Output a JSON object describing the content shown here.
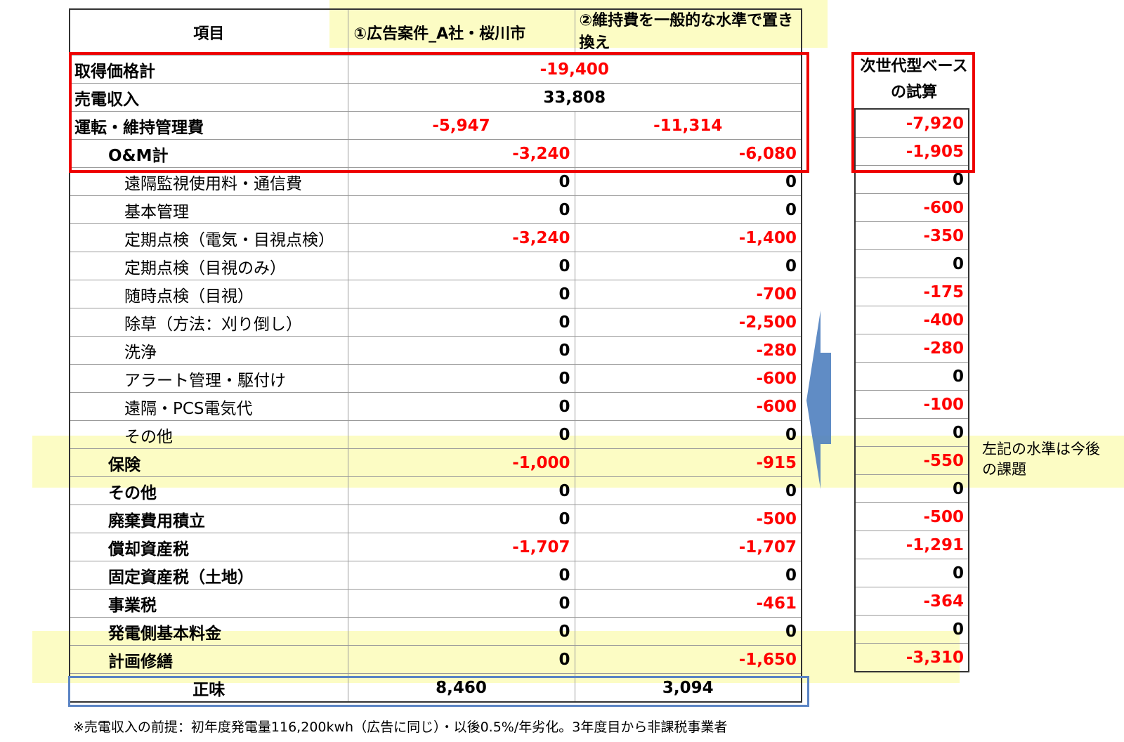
{
  "headers": {
    "item": "項目",
    "col1": "①広告案件_A社・桜川市",
    "col2": "②維持費を一般的な水準で置き換え",
    "col3": "次世代型ベースの試算"
  },
  "merged_rows": [
    {
      "label": "取得価格計",
      "value": "-19,400",
      "neg": true
    },
    {
      "label": "売電収入",
      "value": "33,808",
      "neg": false
    }
  ],
  "rows": [
    {
      "label": "運転・維持管理費",
      "indent": 0,
      "c1": "-5,947",
      "c2": "-11,314",
      "c3": "-7,920",
      "n1": true,
      "n2": true,
      "n3": true,
      "center": true
    },
    {
      "label": "O&M計",
      "indent": 1,
      "c1": "-3,240",
      "c2": "-6,080",
      "c3": "-1,905",
      "n1": true,
      "n2": true,
      "n3": true
    },
    {
      "label": "遠隔監視使用料・通信費",
      "indent": 2,
      "c1": "0",
      "c2": "0",
      "c3": "0"
    },
    {
      "label": "基本管理",
      "indent": 2,
      "c1": "0",
      "c2": "0",
      "c3": "-600",
      "n3": true
    },
    {
      "label": "定期点検（電気・目視点検）",
      "indent": 2,
      "c1": "-3,240",
      "c2": "-1,400",
      "c3": "-350",
      "n1": true,
      "n2": true,
      "n3": true
    },
    {
      "label": "定期点検（目視のみ）",
      "indent": 2,
      "c1": "0",
      "c2": "0",
      "c3": "0"
    },
    {
      "label": "随時点検（目視）",
      "indent": 2,
      "c1": "0",
      "c2": "-700",
      "c3": "-175",
      "n2": true,
      "n3": true
    },
    {
      "label": "除草（方法：刈り倒し）",
      "indent": 2,
      "c1": "0",
      "c2": "-2,500",
      "c3": "-400",
      "n2": true,
      "n3": true
    },
    {
      "label": "洗浄",
      "indent": 2,
      "c1": "0",
      "c2": "-280",
      "c3": "-280",
      "n2": true,
      "n3": true
    },
    {
      "label": "アラート管理・駆付け",
      "indent": 2,
      "c1": "0",
      "c2": "-600",
      "c3": "0",
      "n2": true
    },
    {
      "label": "遠隔・PCS電気代",
      "indent": 2,
      "c1": "0",
      "c2": "-600",
      "c3": "-100",
      "n2": true,
      "n3": true
    },
    {
      "label": "その他",
      "indent": 2,
      "c1": "0",
      "c2": "0",
      "c3": "0"
    },
    {
      "label": "保険",
      "indent": 1,
      "c1": "-1,000",
      "c2": "-915",
      "c3": "-550",
      "n1": true,
      "n2": true,
      "n3": true
    },
    {
      "label": "その他",
      "indent": 1,
      "c1": "0",
      "c2": "0",
      "c3": "0"
    },
    {
      "label": "廃棄費用積立",
      "indent": 1,
      "c1": "0",
      "c2": "-500",
      "c3": "-500",
      "n2": true,
      "n3": true
    },
    {
      "label": "償却資産税",
      "indent": 1,
      "c1": "-1,707",
      "c2": "-1,707",
      "c3": "-1,291",
      "n1": true,
      "n2": true,
      "n3": true
    },
    {
      "label": "固定資産税（土地）",
      "indent": 1,
      "c1": "0",
      "c2": "0",
      "c3": "0"
    },
    {
      "label": "事業税",
      "indent": 1,
      "c1": "0",
      "c2": "-461",
      "c3": "-364",
      "n2": true,
      "n3": true
    },
    {
      "label": "発電側基本料金",
      "indent": 1,
      "c1": "0",
      "c2": "0",
      "c3": "0"
    },
    {
      "label": "計画修繕",
      "indent": 1,
      "c1": "0",
      "c2": "-1,650",
      "c3": "-3,310",
      "n2": true,
      "n3": true
    }
  ],
  "total": {
    "label": "正味",
    "c1": "8,460",
    "c2": "3,094"
  },
  "side_note": "左記の水準は今後の課題",
  "footnote": "※売電収入の前提：初年度発電量116,200kwh（広告に同じ）・以後0.5%/年劣化。3年度目から非課税事業者",
  "colors": {
    "negative": "#ff0000",
    "highlight": "#fbfbb4",
    "red_box": "#ee0000",
    "blue_box": "#5b84c4",
    "arrow": "#4f7fbf"
  }
}
